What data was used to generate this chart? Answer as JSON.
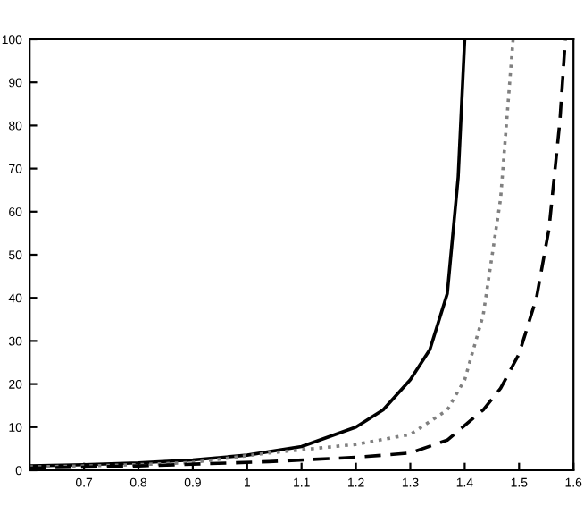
{
  "chart_data": {
    "type": "line",
    "xlim": [
      0.6,
      1.6
    ],
    "ylim": [
      0,
      100
    ],
    "xticks": [
      0.7,
      0.8,
      0.9,
      1,
      1.1,
      1.2,
      1.3,
      1.4,
      1.5,
      1.6
    ],
    "yticks": [
      0,
      10,
      20,
      30,
      40,
      50,
      60,
      70,
      80,
      90,
      100
    ],
    "grid": false,
    "legend": false,
    "series": [
      {
        "color": "#000000",
        "line_style": "solid",
        "x": [
          0.6,
          0.7,
          0.8,
          0.9,
          1.0,
          1.1,
          1.2,
          1.25,
          1.3,
          1.336,
          1.368,
          1.388,
          1.4
        ],
        "values": [
          1,
          1.3,
          1.7,
          2.4,
          3.5,
          5.5,
          10,
          14,
          21,
          28,
          41,
          68,
          100
        ]
      },
      {
        "color": "#808080",
        "line_style": "dotted",
        "x": [
          0.6,
          0.7,
          0.8,
          0.9,
          1.04,
          1.2,
          1.3,
          1.368,
          1.4,
          1.434,
          1.466,
          1.489
        ],
        "values": [
          0.8,
          1,
          1.3,
          1.8,
          4,
          6,
          8.3,
          14,
          21,
          36,
          63,
          100
        ]
      },
      {
        "color": "#000000",
        "line_style": "dashed",
        "x": [
          0.6,
          0.8,
          1.04,
          1.2,
          1.3,
          1.368,
          1.434,
          1.466,
          1.5,
          1.532,
          1.555,
          1.575,
          1.585
        ],
        "values": [
          0.5,
          1,
          2,
          3,
          4,
          7,
          14,
          19,
          27,
          40,
          56,
          81,
          100
        ]
      }
    ]
  }
}
